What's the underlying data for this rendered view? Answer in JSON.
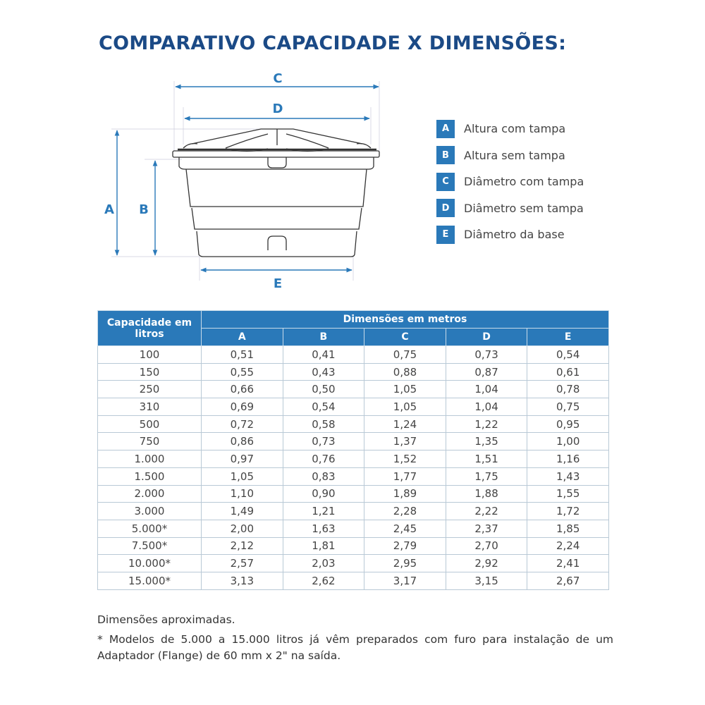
{
  "title": "COMPARATIVO CAPACIDADE X DIMENSÕES:",
  "diagram": {
    "labels": {
      "A": "A",
      "B": "B",
      "C": "C",
      "D": "D",
      "E": "E"
    }
  },
  "colors": {
    "accent": "#2a79b9",
    "title": "#1b4a86"
  },
  "legend": [
    {
      "key": "A",
      "text": "Altura com tampa"
    },
    {
      "key": "B",
      "text": "Altura sem tampa"
    },
    {
      "key": "C",
      "text": "Diâmetro com tampa"
    },
    {
      "key": "D",
      "text": "Diâmetro sem tampa"
    },
    {
      "key": "E",
      "text": "Diâmetro da base"
    }
  ],
  "table": {
    "capacity_header": "Capacidade em litros",
    "group_header": "Dimensões em metros",
    "columns": [
      "A",
      "B",
      "C",
      "D",
      "E"
    ],
    "rows": [
      [
        "100",
        "0,51",
        "0,41",
        "0,75",
        "0,73",
        "0,54"
      ],
      [
        "150",
        "0,55",
        "0,43",
        "0,88",
        "0,87",
        "0,61"
      ],
      [
        "250",
        "0,66",
        "0,50",
        "1,05",
        "1,04",
        "0,78"
      ],
      [
        "310",
        "0,69",
        "0,54",
        "1,05",
        "1,04",
        "0,75"
      ],
      [
        "500",
        "0,72",
        "0,58",
        "1,24",
        "1,22",
        "0,95"
      ],
      [
        "750",
        "0,86",
        "0,73",
        "1,37",
        "1,35",
        "1,00"
      ],
      [
        "1.000",
        "0,97",
        "0,76",
        "1,52",
        "1,51",
        "1,16"
      ],
      [
        "1.500",
        "1,05",
        "0,83",
        "1,77",
        "1,75",
        "1,43"
      ],
      [
        "2.000",
        "1,10",
        "0,90",
        "1,89",
        "1,88",
        "1,55"
      ],
      [
        "3.000",
        "1,49",
        "1,21",
        "2,28",
        "2,22",
        "1,72"
      ],
      [
        "5.000*",
        "2,00",
        "1,63",
        "2,45",
        "2,37",
        "1,85"
      ],
      [
        "7.500*",
        "2,12",
        "1,81",
        "2,79",
        "2,70",
        "2,24"
      ],
      [
        "10.000*",
        "2,57",
        "2,03",
        "2,95",
        "2,92",
        "2,41"
      ],
      [
        "15.000*",
        "3,13",
        "2,62",
        "3,17",
        "3,15",
        "2,67"
      ]
    ]
  },
  "notes": {
    "approx": "Dimensões aproximadas.",
    "footnote": "* Modelos de 5.000 a 15.000 litros já vêm preparados com furo para instalação de um Adaptador (Flange) de 60 mm x 2\" na saída."
  }
}
